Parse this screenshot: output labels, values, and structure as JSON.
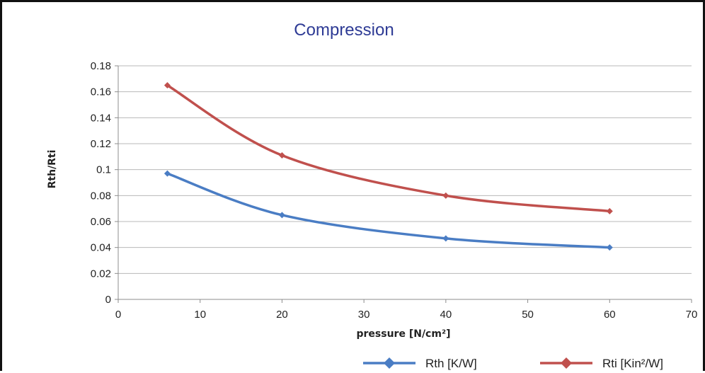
{
  "chart_data": {
    "type": "line",
    "title": "Compression",
    "xlabel": "pressure [N/cm²]",
    "ylabel": "Rth/Rti",
    "xlim": [
      0,
      70
    ],
    "ylim": [
      0,
      0.18
    ],
    "x_ticks": [
      "0",
      "10",
      "20",
      "30",
      "40",
      "50",
      "60",
      "70"
    ],
    "y_ticks": [
      "0",
      "0.02",
      "0.04",
      "0.06",
      "0.08",
      "0.1",
      "0.12",
      "0.14",
      "0.16",
      "0.18"
    ],
    "grid": "horizontal",
    "smooth": true,
    "legend_position": "bottom",
    "series": [
      {
        "name": "Rth [K/W]",
        "color": "#4A7DC4",
        "marker": "diamond",
        "x": [
          6,
          20,
          40,
          60
        ],
        "y": [
          0.097,
          0.065,
          0.047,
          0.04
        ]
      },
      {
        "name": "Rti [Kin²/W]",
        "color": "#C0504D",
        "marker": "diamond",
        "x": [
          6,
          20,
          40,
          60
        ],
        "y": [
          0.165,
          0.111,
          0.08,
          0.068
        ]
      }
    ]
  }
}
